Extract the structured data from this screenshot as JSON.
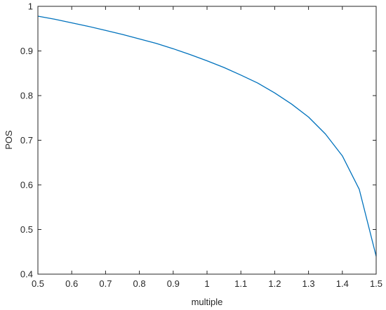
{
  "chart_data": {
    "type": "line",
    "title": "",
    "xlabel": "multiple",
    "ylabel": "POS",
    "xlim": [
      0.5,
      1.5
    ],
    "ylim": [
      0.4,
      1.0
    ],
    "x_ticks": [
      0.5,
      0.6,
      0.7,
      0.8,
      0.9,
      1,
      1.1,
      1.2,
      1.3,
      1.4,
      1.5
    ],
    "x_tick_labels": [
      "0.5",
      "0.6",
      "0.7",
      "0.8",
      "0.9",
      "1",
      "1.1",
      "1.2",
      "1.3",
      "1.4",
      "1.5"
    ],
    "y_ticks": [
      0.4,
      0.5,
      0.6,
      0.7,
      0.8,
      0.9,
      1.0
    ],
    "y_tick_labels": [
      "0.4",
      "0.5",
      "0.6",
      "0.7",
      "0.8",
      "0.9",
      "1"
    ],
    "grid": false,
    "legend": "none",
    "series": [
      {
        "color": "#0072bd",
        "x": [
          0.5,
          0.55,
          0.6,
          0.65,
          0.7,
          0.75,
          0.8,
          0.85,
          0.9,
          0.95,
          1.0,
          1.05,
          1.1,
          1.15,
          1.2,
          1.25,
          1.3,
          1.35,
          1.4,
          1.45,
          1.5
        ],
        "y": [
          0.978,
          0.971,
          0.963,
          0.955,
          0.946,
          0.937,
          0.927,
          0.917,
          0.905,
          0.892,
          0.878,
          0.863,
          0.846,
          0.828,
          0.806,
          0.781,
          0.752,
          0.714,
          0.665,
          0.59,
          0.44
        ]
      }
    ]
  }
}
